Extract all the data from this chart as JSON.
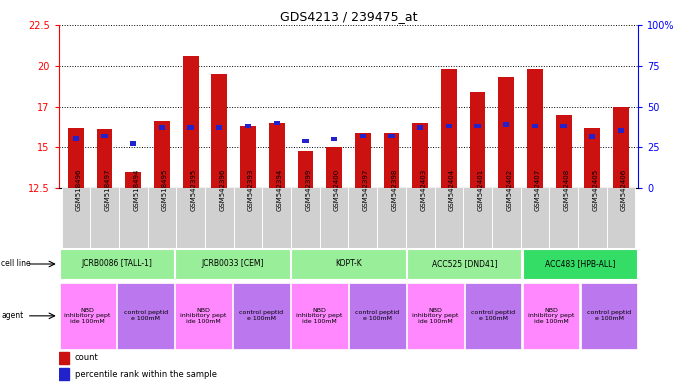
{
  "title": "GDS4213 / 239475_at",
  "samples": [
    "GSM518496",
    "GSM518497",
    "GSM518494",
    "GSM518495",
    "GSM542395",
    "GSM542396",
    "GSM542393",
    "GSM542394",
    "GSM542399",
    "GSM542400",
    "GSM542397",
    "GSM542398",
    "GSM542403",
    "GSM542404",
    "GSM542401",
    "GSM542402",
    "GSM542407",
    "GSM542408",
    "GSM542405",
    "GSM542406"
  ],
  "red_values": [
    16.2,
    16.1,
    13.5,
    16.6,
    20.6,
    19.5,
    16.3,
    16.5,
    14.8,
    15.0,
    15.9,
    15.9,
    16.5,
    19.8,
    18.4,
    19.3,
    19.8,
    17.0,
    16.2,
    17.5
  ],
  "blue_values": [
    15.55,
    15.7,
    15.25,
    16.2,
    16.2,
    16.2,
    16.3,
    16.5,
    15.4,
    15.5,
    15.7,
    15.7,
    16.2,
    16.3,
    16.3,
    16.4,
    16.3,
    16.3,
    15.65,
    16.05
  ],
  "ylim_left": [
    12.5,
    22.5
  ],
  "yticks_left": [
    12.5,
    15.0,
    17.5,
    20.0,
    22.5
  ],
  "ylim_right": [
    0,
    100
  ],
  "yticks_right": [
    0,
    25,
    50,
    75,
    100
  ],
  "cell_lines": [
    {
      "label": "JCRB0086 [TALL-1]",
      "start": 0,
      "end": 4,
      "color": "#99ee99"
    },
    {
      "label": "JCRB0033 [CEM]",
      "start": 4,
      "end": 8,
      "color": "#99ee99"
    },
    {
      "label": "KOPT-K",
      "start": 8,
      "end": 12,
      "color": "#99ee99"
    },
    {
      "label": "ACC525 [DND41]",
      "start": 12,
      "end": 16,
      "color": "#99ee99"
    },
    {
      "label": "ACC483 [HPB-ALL]",
      "start": 16,
      "end": 20,
      "color": "#33dd66"
    }
  ],
  "agents": [
    {
      "label": "NBD\ninhibitory pept\nide 100mM",
      "start": 0,
      "end": 2,
      "color": "#ff88ff"
    },
    {
      "label": "control peptid\ne 100mM",
      "start": 2,
      "end": 4,
      "color": "#bb77ee"
    },
    {
      "label": "NBD\ninhibitory pept\nide 100mM",
      "start": 4,
      "end": 6,
      "color": "#ff88ff"
    },
    {
      "label": "control peptid\ne 100mM",
      "start": 6,
      "end": 8,
      "color": "#bb77ee"
    },
    {
      "label": "NBD\ninhibitory pept\nide 100mM",
      "start": 8,
      "end": 10,
      "color": "#ff88ff"
    },
    {
      "label": "control peptid\ne 100mM",
      "start": 10,
      "end": 12,
      "color": "#bb77ee"
    },
    {
      "label": "NBD\ninhibitory pept\nide 100mM",
      "start": 12,
      "end": 14,
      "color": "#ff88ff"
    },
    {
      "label": "control peptid\ne 100mM",
      "start": 14,
      "end": 16,
      "color": "#bb77ee"
    },
    {
      "label": "NBD\ninhibitory pept\nide 100mM",
      "start": 16,
      "end": 18,
      "color": "#ff88ff"
    },
    {
      "label": "control peptid\ne 100mM",
      "start": 18,
      "end": 20,
      "color": "#bb77ee"
    }
  ],
  "bar_color": "#cc1111",
  "blue_bar_color": "#2222cc",
  "ymin": 12.5,
  "ymax": 22.5,
  "n_samples": 20
}
